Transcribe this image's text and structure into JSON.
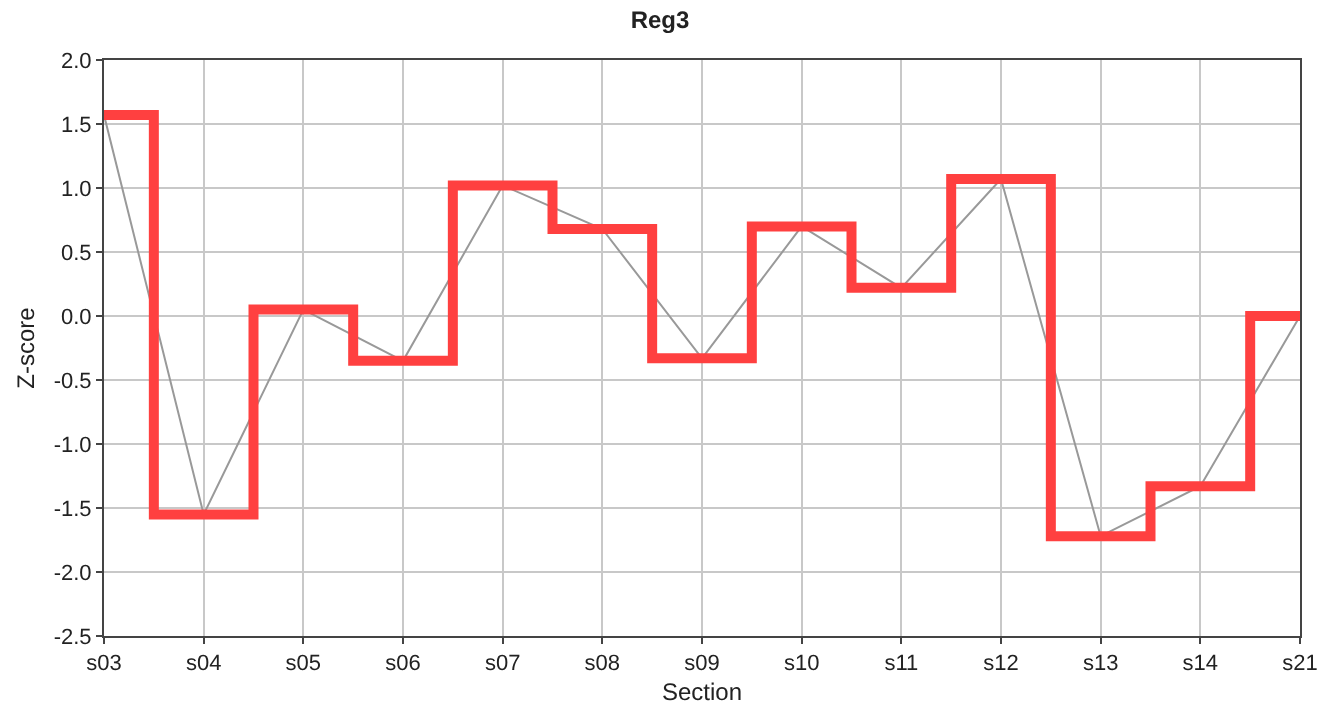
{
  "chart_data": {
    "type": "line",
    "title": "Reg3",
    "xlabel": "Section",
    "ylabel": "Z-score",
    "categories": [
      "s03",
      "s04",
      "s05",
      "s06",
      "s07",
      "s08",
      "s09",
      "s10",
      "s11",
      "s12",
      "s13",
      "s14",
      "s21"
    ],
    "series": [
      {
        "type": "line",
        "color": "#999999",
        "values": [
          1.57,
          -1.55,
          0.05,
          -0.35,
          1.02,
          0.68,
          -0.33,
          0.7,
          0.22,
          1.07,
          -1.72,
          -1.33,
          0.0
        ]
      },
      {
        "type": "step",
        "color": "#ff4040",
        "values": [
          1.57,
          -1.55,
          0.05,
          -0.35,
          1.02,
          0.68,
          -0.33,
          0.7,
          0.22,
          1.07,
          -1.72,
          -1.33,
          0.0
        ]
      }
    ],
    "ylim": [
      -2.5,
      2.0
    ],
    "yticks": [
      {
        "value": -2.5,
        "label": "-2.5"
      },
      {
        "value": -2,
        "label": "-2.0"
      },
      {
        "value": -1.5,
        "label": "-1.5"
      },
      {
        "value": -1,
        "label": "-1.0"
      },
      {
        "value": -0.5,
        "label": "-0.5"
      },
      {
        "value": 0,
        "label": "0.0"
      },
      {
        "value": 0.5,
        "label": "0.5"
      },
      {
        "value": 1,
        "label": "1.0"
      },
      {
        "value": 1.5,
        "label": "1.5"
      },
      {
        "value": 2,
        "label": "2.0"
      }
    ],
    "grid": true,
    "marker": "none",
    "line_style": "solid"
  }
}
